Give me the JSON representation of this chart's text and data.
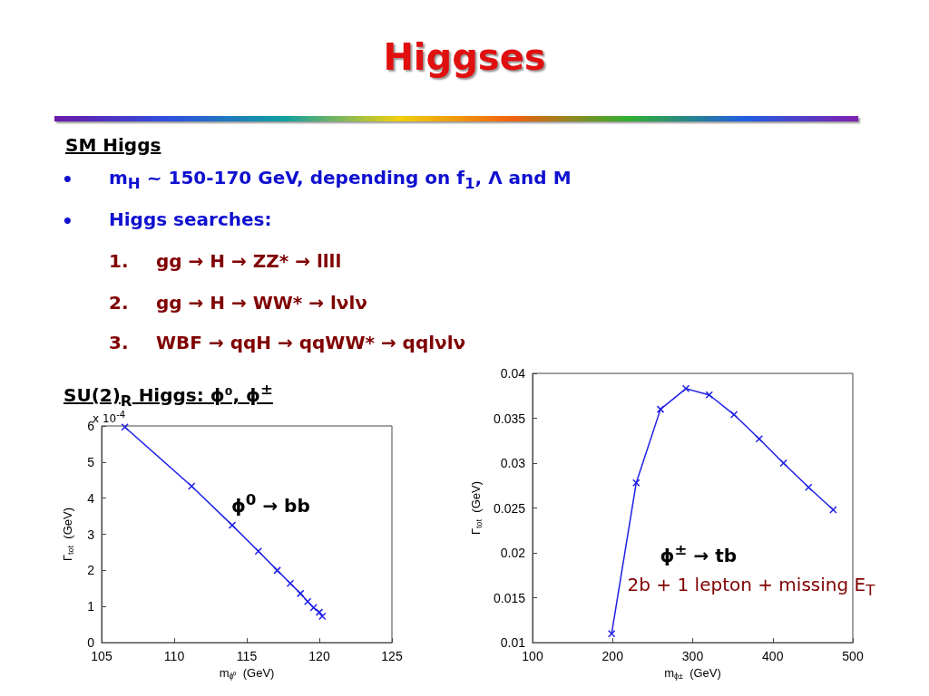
{
  "chart_data": [
    {
      "type": "line",
      "title": "Higgses",
      "xlabel": "m$_{ϕ⁰}$  (GeV)",
      "ylabel": "Γ$_{tot}$  (GeV)",
      "annotations": [
        "SM Higgs",
        "•",
        "m$_{H}$ ~ 150-170 GeV,  depending on f$_{1}$, Λ and M",
        "•",
        "Higgs searches:",
        "1.",
        "gg → H →  ZZ* → llll",
        "2.",
        "gg → H → WW* → lνlν",
        "3.",
        "WBF → qqH → qqWW* → qqlνlν",
        "SU(2)$_{R}$ Higgs: ϕ⁰, ϕ$^{±}$",
        "x 10$^{-4}$",
        "ϕ$^{0}$ → bb"
      ],
      "x": [
        106.6,
        111.2,
        114.0,
        115.8,
        117.1,
        118.0,
        118.7,
        119.2,
        119.6,
        120.0,
        120.2
      ],
      "series": [
        {
          "color": "#1f1fe6",
          "values": [
            5.97,
            4.33,
            3.25,
            2.53,
            2.0,
            1.64,
            1.36,
            1.14,
            0.97,
            0.84,
            0.73
          ]
        }
      ],
      "xlim": [
        105,
        125
      ],
      "xticks": [
        105,
        110,
        115,
        120,
        125
      ],
      "ylim": [
        0,
        6
      ],
      "yticks": [
        0,
        1,
        2,
        3,
        4,
        5,
        6
      ],
      "grid": false,
      "marker": "cross",
      "line_style": "solid"
    },
    {
      "type": "line",
      "xlabel": "m$_{ϕ±}$  (GeV)",
      "ylabel": "Γ$_{tot}$  (GeV)",
      "annotations": [
        "ϕ$^{±}$ → tb",
        "2b + 1 lepton + missing E$_{T}$"
      ],
      "x": [
        198.8,
        229.5,
        259.8,
        291.5,
        320.7,
        351.7,
        383.1,
        413.4,
        444.8,
        475.5
      ],
      "series": [
        {
          "color": "#1f1fe6",
          "values": [
            0.011,
            0.0278,
            0.036,
            0.0383,
            0.0376,
            0.0354,
            0.0327,
            0.03,
            0.0273,
            0.0248
          ]
        }
      ],
      "xlim": [
        100,
        500
      ],
      "xticks": [
        100,
        200,
        300,
        400,
        500
      ],
      "ylim": [
        0.01,
        0.04
      ],
      "yticks": [
        0.01,
        0.015,
        0.02,
        0.025,
        0.03,
        0.035,
        0.04
      ],
      "grid": false,
      "marker": "cross",
      "line_style": "solid"
    }
  ]
}
